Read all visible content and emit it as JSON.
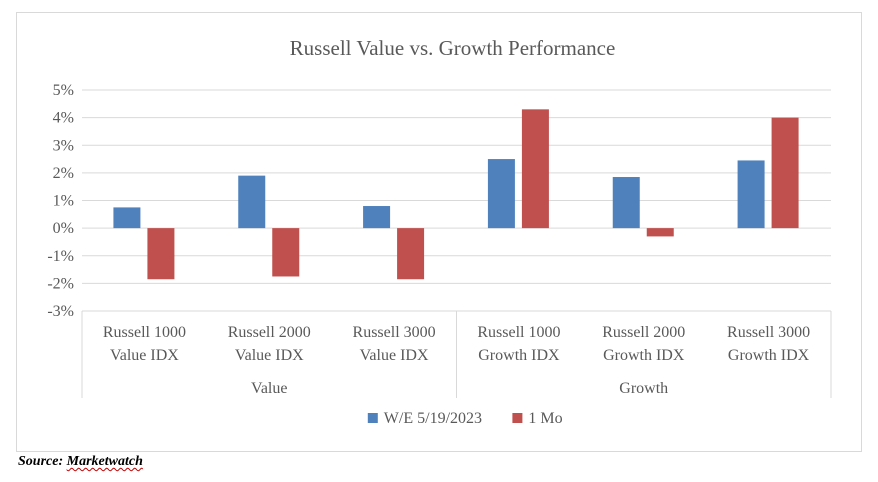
{
  "chart_data": {
    "type": "bar",
    "title": "Russell Value vs. Growth Performance",
    "xlabel": "",
    "ylabel": "",
    "categories": [
      [
        "Russell 1000",
        "Value IDX"
      ],
      [
        "Russell 2000",
        "Value IDX"
      ],
      [
        "Russell 3000",
        "Value IDX"
      ],
      [
        "Russell 1000",
        "Growth IDX"
      ],
      [
        "Russell 2000",
        "Growth IDX"
      ],
      [
        "Russell 3000",
        "Growth IDX"
      ]
    ],
    "groups": [
      {
        "label": "Value",
        "start": 0,
        "end": 2
      },
      {
        "label": "Growth",
        "start": 3,
        "end": 5
      }
    ],
    "series": [
      {
        "name": "W/E 5/19/2023",
        "color": "#4f81bd",
        "values": [
          0.75,
          1.9,
          0.8,
          2.5,
          1.85,
          2.45
        ]
      },
      {
        "name": "1 Mo",
        "color": "#c0504d",
        "values": [
          -1.85,
          -1.75,
          -1.85,
          4.3,
          -0.3,
          4.0
        ]
      }
    ],
    "ylim": [
      -3,
      5
    ],
    "yticks": [
      5,
      4,
      3,
      2,
      1,
      0,
      -1,
      -2,
      -3
    ],
    "ytick_format": "percent",
    "grid": true,
    "legend": "bottom"
  },
  "source": {
    "prefix": "Source: ",
    "name": "Marketwatch"
  }
}
